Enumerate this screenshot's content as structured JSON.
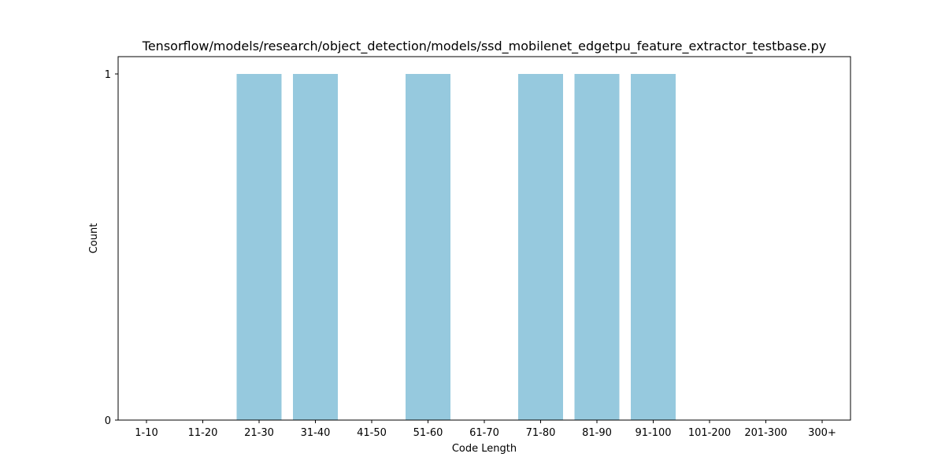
{
  "chart_data": {
    "type": "bar",
    "title": "Tensorflow/models/research/object_detection/models/ssd_mobilenet_edgetpu_feature_extractor_testbase.py",
    "xlabel": "Code Length",
    "ylabel": "Count",
    "categories": [
      "1-10",
      "11-20",
      "21-30",
      "31-40",
      "41-50",
      "51-60",
      "61-70",
      "71-80",
      "81-90",
      "91-100",
      "101-200",
      "201-300",
      "300+"
    ],
    "values": [
      0,
      0,
      1,
      1,
      0,
      1,
      0,
      1,
      1,
      1,
      0,
      0,
      0
    ],
    "ylim": [
      0,
      1
    ],
    "yticks": [
      "0",
      "1"
    ],
    "bar_color": "#96c9de",
    "grid": false,
    "legend": "none"
  }
}
